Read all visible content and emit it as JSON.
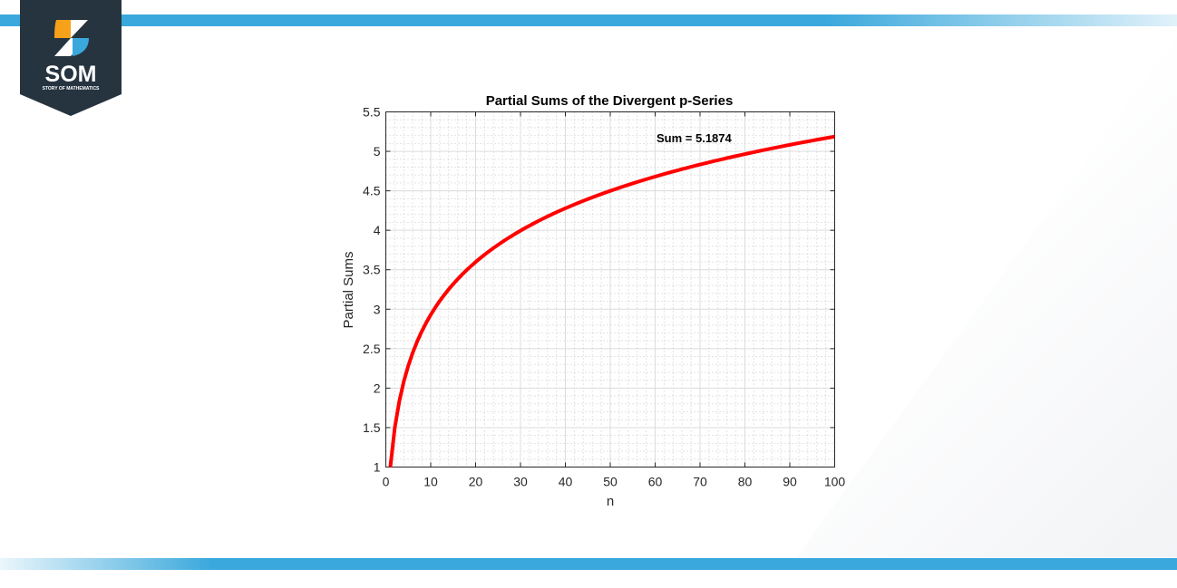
{
  "logo": {
    "text": "SOM",
    "subtitle": "STORY OF MATHEMATICS",
    "colors": {
      "bg": "#263440",
      "orange": "#f7a11a",
      "blue": "#3aa8dc"
    }
  },
  "accent_color": "#3aa8dc",
  "chart_data": {
    "type": "line",
    "title": "Partial Sums of the Divergent p-Series",
    "xlabel": "n",
    "ylabel": "Partial Sums",
    "xlim": [
      0,
      100
    ],
    "ylim": [
      1,
      5.5
    ],
    "xticks": [
      "0",
      "10",
      "20",
      "30",
      "40",
      "50",
      "60",
      "70",
      "80",
      "90",
      "100"
    ],
    "yticks": [
      "1",
      "1.5",
      "2",
      "2.5",
      "3",
      "3.5",
      "4",
      "4.5",
      "5",
      "5.5"
    ],
    "grid": "major and minor",
    "line_color": "#ff0000",
    "annotation": "Sum = 5.1874",
    "series": [
      {
        "x": [
          1,
          2,
          3,
          4,
          5,
          6,
          7,
          8,
          9,
          10,
          11,
          12,
          13,
          14,
          15,
          16,
          17,
          18,
          19,
          20,
          21,
          22,
          23,
          24,
          25,
          26,
          27,
          28,
          29,
          30,
          31,
          32,
          33,
          34,
          35,
          36,
          37,
          38,
          39,
          40,
          41,
          42,
          43,
          44,
          45,
          46,
          47,
          48,
          49,
          50,
          51,
          52,
          53,
          54,
          55,
          56,
          57,
          58,
          59,
          60,
          61,
          62,
          63,
          64,
          65,
          66,
          67,
          68,
          69,
          70,
          71,
          72,
          73,
          74,
          75,
          76,
          77,
          78,
          79,
          80,
          81,
          82,
          83,
          84,
          85,
          86,
          87,
          88,
          89,
          90,
          91,
          92,
          93,
          94,
          95,
          96,
          97,
          98,
          99,
          100
        ],
        "y": [
          1,
          1.5,
          1.8333,
          2.0833,
          2.2833,
          2.45,
          2.5929,
          2.7179,
          2.829,
          2.929,
          3.0199,
          3.1032,
          3.1801,
          3.2516,
          3.3182,
          3.3807,
          3.4396,
          3.4951,
          3.5477,
          3.5977,
          3.6454,
          3.6908,
          3.7343,
          3.776,
          3.816,
          3.8544,
          3.8915,
          3.9272,
          3.9617,
          3.995,
          4.0272,
          4.0585,
          4.0888,
          4.1182,
          4.1468,
          4.1746,
          4.2016,
          4.2279,
          4.2535,
          4.2785,
          4.3029,
          4.3267,
          4.35,
          4.3727,
          4.3949,
          4.4167,
          4.438,
          4.4588,
          4.4792,
          4.4992,
          4.5188,
          4.538,
          4.5569,
          4.5754,
          4.5936,
          4.6115,
          4.629,
          4.6463,
          4.6632,
          4.6799,
          4.6963,
          4.7124,
          4.7283,
          4.7439,
          4.7593,
          4.7744,
          4.7894,
          4.8041,
          4.8186,
          4.8328,
          4.8469,
          4.8608,
          4.8745,
          4.888,
          4.9014,
          4.9145,
          4.9275,
          4.9403,
          4.953,
          4.9655,
          4.9778,
          4.99,
          5.0021,
          5.014,
          5.0257,
          5.0374,
          5.0489,
          5.0602,
          5.0715,
          5.0826,
          5.0936,
          5.1044,
          5.1152,
          5.1258,
          5.1363,
          5.1468,
          5.1571,
          5.1673,
          5.1774,
          5.1874
        ]
      }
    ]
  }
}
